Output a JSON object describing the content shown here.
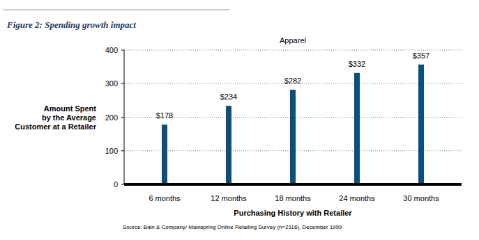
{
  "chart_data": {
    "type": "bar",
    "title": "Figure 2: Spending growth impact",
    "subtitle": "Apparel",
    "ylabel": "Amount Spent\nby the Average\nCustomer at a Retailer",
    "xlabel": "Purchasing History with Retailer",
    "source": "Source: Bain & Company/ Mainspring Online Retailing Survey (n=2116), December 1999",
    "categories": [
      "6 months",
      "12 months",
      "18 months",
      "24 months",
      "30 months"
    ],
    "values": [
      178,
      234,
      282,
      332,
      357
    ],
    "value_labels": [
      "$178",
      "$234",
      "$282",
      "$332",
      "$357"
    ],
    "color": "#0d4f7c",
    "ylim": [
      0,
      400
    ],
    "yticks": [
      0,
      100,
      200,
      300,
      400
    ],
    "grid": true,
    "data_labels": true
  }
}
